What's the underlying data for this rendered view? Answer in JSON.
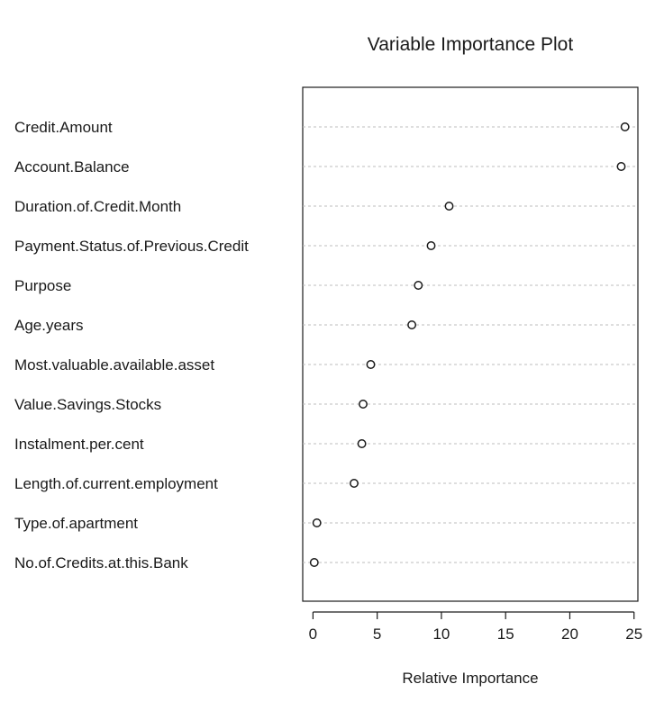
{
  "chart_data": {
    "type": "scatter",
    "title": "Variable Importance Plot",
    "xlabel": "Relative Importance",
    "ylabel": "",
    "xlim": [
      -0.8,
      25.3
    ],
    "xticks": [
      0,
      5,
      10,
      15,
      20,
      25
    ],
    "grid": "horizontal dotted guide lines",
    "legend": "none",
    "categories": [
      "Credit.Amount",
      "Account.Balance",
      "Duration.of.Credit.Month",
      "Payment.Status.of.Previous.Credit",
      "Purpose",
      "Age.years",
      "Most.valuable.available.asset",
      "Value.Savings.Stocks",
      "Instalment.per.cent",
      "Length.of.current.employment",
      "Type.of.apartment",
      "No.of.Credits.at.this.Bank"
    ],
    "values": [
      24.3,
      24.0,
      10.6,
      9.2,
      8.2,
      7.7,
      4.5,
      3.9,
      3.8,
      3.2,
      0.3,
      0.1
    ]
  }
}
